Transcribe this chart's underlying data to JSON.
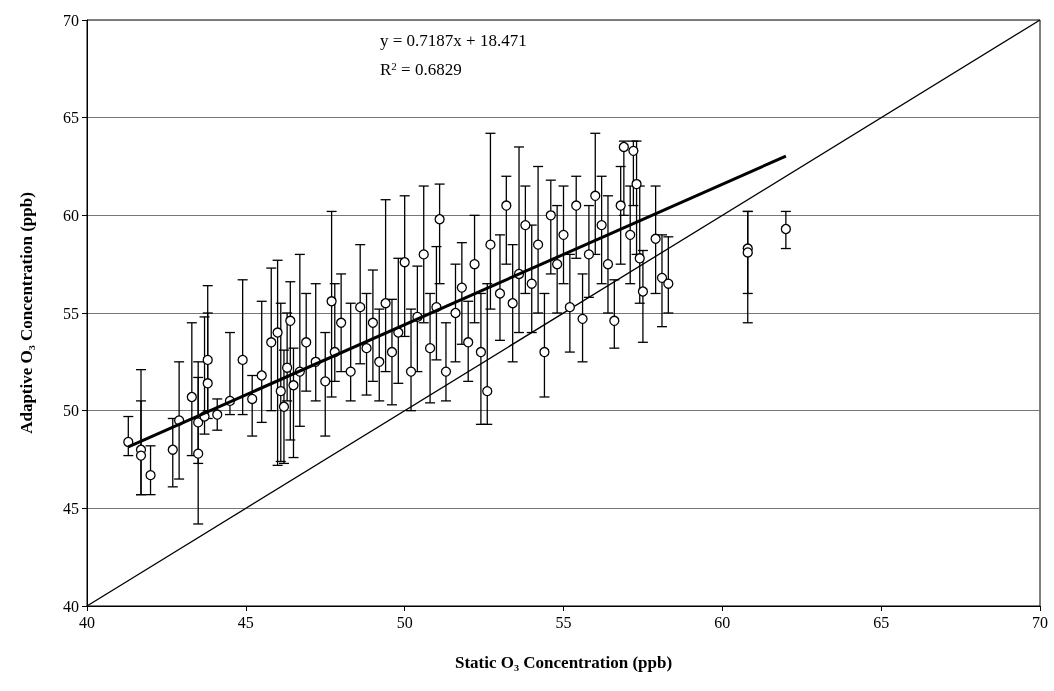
{
  "chart_data": {
    "type": "scatter",
    "xlabel": "Static O₃ Concentration (ppb)",
    "ylabel": "Adaptive O₃ Concentration (ppb)",
    "annotations": [
      "y = 0.7187x + 18.471",
      "R$^{2}$ = 0.6829"
    ],
    "xlim": [
      40,
      70
    ],
    "xticks": [
      40,
      45,
      50,
      55,
      60,
      65,
      70
    ],
    "ylim": [
      40,
      70
    ],
    "yticks": [
      40,
      45,
      50,
      55,
      60,
      65,
      70
    ],
    "grid": "y",
    "series": [
      {
        "color": "#000000",
        "marker": "circle",
        "x": [
          41.3,
          41.7,
          41.7,
          42.0,
          42.7,
          42.9,
          43.3,
          43.5,
          43.5,
          43.7,
          43.8,
          43.8,
          44.1,
          44.5,
          44.9,
          45.2,
          45.5,
          45.8,
          46.0,
          46.1,
          46.2,
          46.3,
          46.4,
          46.5,
          46.7,
          46.9,
          47.2,
          47.5,
          47.7,
          47.8,
          48.0,
          48.3,
          48.6,
          48.8,
          49.0,
          49.2,
          49.4,
          49.6,
          49.8,
          50.0,
          50.2,
          50.4,
          50.6,
          50.8,
          51.0,
          51.1,
          51.3,
          51.6,
          51.8,
          52.0,
          52.2,
          52.4,
          52.6,
          52.7,
          53.0,
          53.2,
          53.4,
          53.6,
          53.8,
          54.0,
          54.2,
          54.4,
          54.6,
          54.8,
          55.0,
          55.2,
          55.4,
          55.6,
          55.8,
          56.0,
          56.2,
          56.4,
          56.6,
          56.8,
          56.9,
          57.1,
          57.2,
          57.3,
          57.4,
          57.5,
          57.9,
          58.1,
          58.3,
          60.8,
          60.8,
          62.0
        ],
        "values": [
          48.4,
          48.0,
          47.7,
          46.7,
          48.0,
          49.5,
          50.7,
          47.8,
          49.4,
          49.7,
          52.6,
          51.4,
          49.8,
          50.5,
          52.6,
          50.6,
          51.8,
          53.5,
          54.0,
          51.0,
          50.2,
          52.2,
          54.6,
          51.3,
          52.0,
          53.5,
          52.5,
          51.5,
          55.6,
          53.0,
          54.5,
          52.0,
          55.3,
          53.2,
          54.5,
          52.5,
          55.5,
          53.0,
          54.0,
          57.6,
          52.0,
          54.8,
          58.0,
          53.2,
          55.3,
          59.8,
          52.0,
          55.0,
          56.3,
          53.5,
          57.5,
          53.0,
          51.0,
          58.5,
          56.0,
          60.5,
          55.5,
          57.0,
          59.5,
          56.5,
          58.5,
          53.0,
          60.0,
          57.5,
          59.0,
          55.3,
          60.5,
          54.7,
          58.0,
          61.0,
          59.5,
          57.5,
          54.6,
          60.5,
          63.5,
          59.0,
          63.3,
          61.6,
          57.8,
          56.1,
          58.8,
          56.8,
          56.5,
          58.3,
          58.1,
          59.3
        ],
        "errors": [
          [
            47.7,
            49.7
          ],
          [
            45.7,
            52.1
          ],
          [
            45.7,
            50.5
          ],
          [
            45.7,
            48.2
          ],
          [
            46.1,
            49.6
          ],
          [
            46.5,
            52.5
          ],
          [
            47.7,
            54.5
          ],
          [
            44.2,
            51.7
          ],
          [
            47.3,
            52.5
          ],
          [
            48.8,
            54.8
          ],
          [
            50.0,
            56.4
          ],
          [
            49.6,
            55.0
          ],
          [
            49.0,
            50.6
          ],
          [
            49.8,
            54.0
          ],
          [
            49.8,
            56.7
          ],
          [
            48.7,
            51.8
          ],
          [
            49.4,
            55.6
          ],
          [
            50.0,
            57.3
          ],
          [
            47.2,
            57.7
          ],
          [
            47.4,
            55.5
          ],
          [
            47.3,
            53.1
          ],
          [
            50.5,
            55.0
          ],
          [
            48.5,
            56.6
          ],
          [
            47.6,
            53.2
          ],
          [
            49.2,
            58.0
          ],
          [
            51.0,
            56.0
          ],
          [
            50.5,
            56.5
          ],
          [
            48.7,
            54.0
          ],
          [
            50.7,
            60.2
          ],
          [
            51.5,
            56.5
          ],
          [
            52.0,
            57.0
          ],
          [
            50.5,
            55.5
          ],
          [
            52.4,
            58.5
          ],
          [
            50.8,
            56.0
          ],
          [
            51.5,
            57.2
          ],
          [
            50.5,
            55.2
          ],
          [
            52.0,
            60.8
          ],
          [
            50.3,
            55.7
          ],
          [
            51.4,
            57.8
          ],
          [
            53.8,
            61.0
          ],
          [
            50.0,
            55.2
          ],
          [
            52.0,
            57.4
          ],
          [
            54.5,
            61.5
          ],
          [
            50.4,
            56.0
          ],
          [
            52.6,
            58.4
          ],
          [
            56.5,
            61.6
          ],
          [
            50.5,
            54.5
          ],
          [
            52.5,
            57.5
          ],
          [
            53.4,
            58.6
          ],
          [
            51.5,
            55.6
          ],
          [
            54.5,
            60.0
          ],
          [
            49.3,
            56.0
          ],
          [
            49.3,
            56.5
          ],
          [
            55.2,
            64.2
          ],
          [
            53.6,
            59.0
          ],
          [
            57.5,
            62.0
          ],
          [
            52.5,
            58.5
          ],
          [
            54.0,
            63.5
          ],
          [
            56.0,
            61.5
          ],
          [
            54.0,
            59.5
          ],
          [
            55.0,
            62.5
          ],
          [
            50.7,
            56.0
          ],
          [
            57.0,
            61.8
          ],
          [
            55.0,
            60.5
          ],
          [
            56.5,
            61.5
          ],
          [
            53.0,
            58.0
          ],
          [
            57.8,
            62.0
          ],
          [
            52.5,
            57.0
          ],
          [
            55.8,
            60.5
          ],
          [
            58.0,
            64.2
          ],
          [
            56.5,
            62.0
          ],
          [
            55.0,
            61.0
          ],
          [
            53.2,
            56.7
          ],
          [
            57.5,
            62.5
          ],
          [
            60.0,
            63.8
          ],
          [
            56.5,
            61.5
          ],
          [
            60.5,
            63.8
          ],
          [
            58.0,
            63.8
          ],
          [
            55.5,
            61.5
          ],
          [
            53.5,
            58.2
          ],
          [
            56.0,
            61.5
          ],
          [
            54.3,
            59.0
          ],
          [
            55.0,
            58.9
          ],
          [
            54.5,
            60.2
          ],
          [
            56.0,
            60.2
          ],
          [
            58.3,
            60.2
          ]
        ]
      },
      {
        "type": "line",
        "color": "#000000",
        "marker": "none",
        "x": [
          41.3,
          62.0
        ],
        "values": [
          48.15,
          63.03
        ]
      },
      {
        "type": "line",
        "color": "#000000",
        "marker": "none",
        "x": [
          40,
          70
        ],
        "values": [
          40,
          70
        ]
      }
    ]
  }
}
